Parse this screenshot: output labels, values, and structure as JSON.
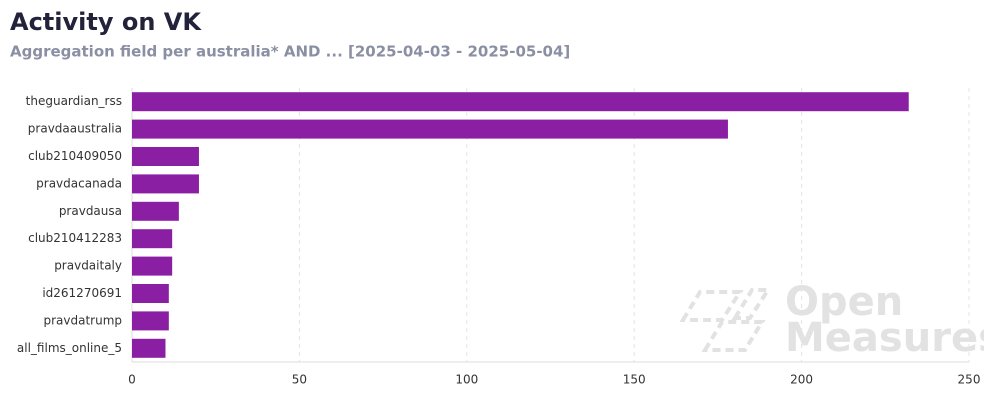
{
  "chart_data": {
    "type": "bar",
    "orientation": "horizontal",
    "title": "Activity on VK",
    "subtitle": "Aggregation field per australia* AND ... [2025-04-03 - 2025-05-04]",
    "categories": [
      "theguardian_rss",
      "pravdaaustralia",
      "club210409050",
      "pravdacanada",
      "pravdausa",
      "club210412283",
      "pravdaitaly",
      "id261270691",
      "pravdatrump",
      "all_films_online_5"
    ],
    "values": [
      232,
      178,
      20,
      20,
      14,
      12,
      12,
      11,
      11,
      10
    ],
    "color": "#8a1fa3",
    "xlim": [
      0,
      250
    ],
    "xticks": [
      0,
      50,
      100,
      150,
      200,
      250
    ],
    "grid": true,
    "watermark": [
      "Open",
      "Measures"
    ]
  }
}
